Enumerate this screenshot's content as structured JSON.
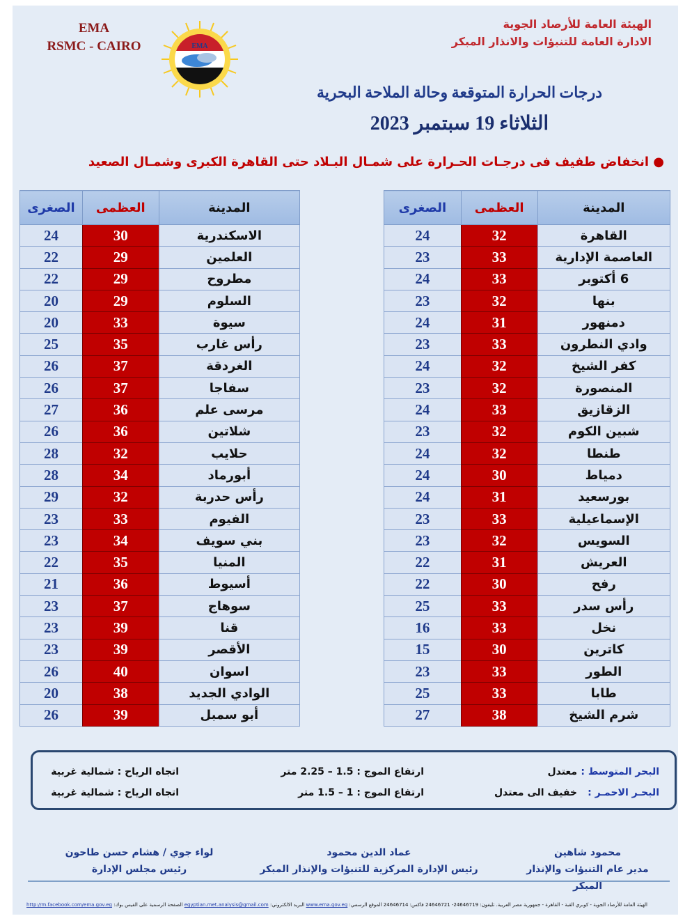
{
  "header": {
    "ema": "EMA",
    "rsmc": "RSMC - CAIRO",
    "logo_text": "EMA",
    "org_line1": "الهيئة العامة للأرصاد الجوية",
    "org_line2": "الادارة العامة للتنبؤات والانذار المبكر",
    "title": "درجات الحرارة المتوقعة وحالة الملاحة البحرية",
    "date": "الثلاثاء 19 سبتمبر 2023",
    "note": "انخفاض طفيف فى درجـات الحـرارة على شمـال البـلاد حتى القاهرة الكبرى وشمـال الصعيد"
  },
  "colors": {
    "max_cell": "#c00000",
    "min_text": "#1f3a8a",
    "cell_bg": "#dae4f3"
  },
  "table_headers": {
    "city": "المدينة",
    "max": "العظمى",
    "min": "الصغرى"
  },
  "right_table": [
    {
      "city": "القاهرة",
      "max": 32,
      "min": 24
    },
    {
      "city": "العاصمة الإدارية",
      "max": 33,
      "min": 23
    },
    {
      "city": "6 أكتوبر",
      "max": 33,
      "min": 24
    },
    {
      "city": "بنها",
      "max": 32,
      "min": 23
    },
    {
      "city": "دمنهور",
      "max": 31,
      "min": 24
    },
    {
      "city": "وادي النطرون",
      "max": 33,
      "min": 23
    },
    {
      "city": "كفر الشيخ",
      "max": 32,
      "min": 24
    },
    {
      "city": "المنصورة",
      "max": 32,
      "min": 23
    },
    {
      "city": "الزقازيق",
      "max": 33,
      "min": 24
    },
    {
      "city": "شبين الكوم",
      "max": 32,
      "min": 23
    },
    {
      "city": "طنطا",
      "max": 32,
      "min": 24
    },
    {
      "city": "دمياط",
      "max": 30,
      "min": 24
    },
    {
      "city": "بورسعيد",
      "max": 31,
      "min": 24
    },
    {
      "city": "الإسماعيلية",
      "max": 33,
      "min": 23
    },
    {
      "city": "السويس",
      "max": 32,
      "min": 23
    },
    {
      "city": "العريش",
      "max": 31,
      "min": 22
    },
    {
      "city": "رفح",
      "max": 30,
      "min": 22
    },
    {
      "city": "رأس سدر",
      "max": 33,
      "min": 25
    },
    {
      "city": "نخل",
      "max": 33,
      "min": 16
    },
    {
      "city": "كاترين",
      "max": 30,
      "min": 15
    },
    {
      "city": "الطور",
      "max": 33,
      "min": 23
    },
    {
      "city": "طابا",
      "max": 33,
      "min": 25
    },
    {
      "city": "شرم الشيخ",
      "max": 38,
      "min": 27
    }
  ],
  "left_table": [
    {
      "city": "الاسكندرية",
      "max": 30,
      "min": 24
    },
    {
      "city": "العلمين",
      "max": 29,
      "min": 22
    },
    {
      "city": "مطروح",
      "max": 29,
      "min": 22
    },
    {
      "city": "السلوم",
      "max": 29,
      "min": 20
    },
    {
      "city": "سيوة",
      "max": 33,
      "min": 20
    },
    {
      "city": "رأس غارب",
      "max": 35,
      "min": 25
    },
    {
      "city": "الغردقة",
      "max": 37,
      "min": 26
    },
    {
      "city": "سفاجا",
      "max": 37,
      "min": 26
    },
    {
      "city": "مرسى علم",
      "max": 36,
      "min": 27
    },
    {
      "city": "شلاتين",
      "max": 36,
      "min": 26
    },
    {
      "city": "حلايب",
      "max": 32,
      "min": 28
    },
    {
      "city": "أبورماد",
      "max": 34,
      "min": 28
    },
    {
      "city": "رأس حدربة",
      "max": 32,
      "min": 29
    },
    {
      "city": "الفيوم",
      "max": 33,
      "min": 23
    },
    {
      "city": "بني سويف",
      "max": 34,
      "min": 23
    },
    {
      "city": "المنيا",
      "max": 35,
      "min": 22
    },
    {
      "city": "أسيوط",
      "max": 36,
      "min": 21
    },
    {
      "city": "سوهاج",
      "max": 37,
      "min": 23
    },
    {
      "city": "قنا",
      "max": 39,
      "min": 23
    },
    {
      "city": "الأقصر",
      "max": 39,
      "min": 23
    },
    {
      "city": "اسوان",
      "max": 40,
      "min": 26
    },
    {
      "city": "الوادي الجديد",
      "max": 38,
      "min": 20
    },
    {
      "city": "أبو سمبل",
      "max": 39,
      "min": 26
    }
  ],
  "sea": {
    "mediterranean": {
      "label": "البحر المتوسط :",
      "state": "معتدل",
      "wave": "ارتفاع الموج : 1.5 – 2.25  متر",
      "wind": "اتجاه الرياح : شمالية غربية"
    },
    "red_sea": {
      "label": "البحـر الاحمـر :",
      "state": "خفيف الى معتدل",
      "wave": "ارتفاع الموج : 1 – 1.5  متر",
      "wind": "اتجاه الرياح : شمالية غربية"
    }
  },
  "signatures": [
    {
      "name": "محمود شاهين",
      "title": "مدير عام التنبؤات والإنذار المبكر"
    },
    {
      "name": "عماد الدين محمود",
      "title": "رئيس الإدارة المركزية للتنبؤات والإنذار المبكر"
    },
    {
      "name": "لواء جوي / هشام حسن طاحون",
      "title": "رئيس مجلس الإدارة"
    }
  ],
  "footer": {
    "address": "الهيئة العامة للأرصاد الجوية - كوبري القبة - القاهرة - جمهورية مصر العربية. تليفون: 24646719- 24646721 فاكس: 24646714 الموقع الرسمي:",
    "website": "www.ema.gov.eg",
    "email_label": "البريد الالكتروني:",
    "email": "egyptian.met.analysis@gmail.com",
    "fb_label": "الصفحة الرسمية على الفيس بوك:",
    "facebook": "http://m.facebook.com/ema.gov.eg"
  }
}
